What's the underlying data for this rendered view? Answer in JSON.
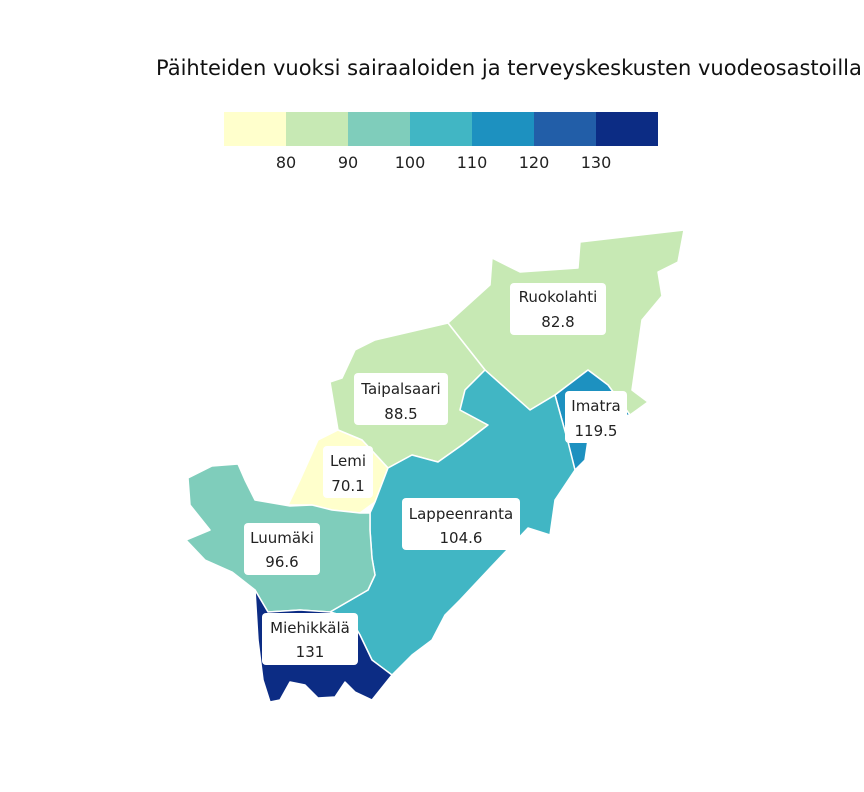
{
  "title": "Päihteiden vuoksi sairaaloiden ja terveyskeskusten vuodeosastoilla h",
  "legend": {
    "colors": [
      "#ffffcc",
      "#c7e9b4",
      "#7fcdbb",
      "#41b6c4",
      "#1d91c0",
      "#225ea8",
      "#0c2c84"
    ],
    "ticks": [
      "80",
      "90",
      "100",
      "110",
      "120",
      "130"
    ]
  },
  "regions": [
    {
      "name": "Ruokolahti",
      "value": "82.8",
      "color": "#c7e9b4"
    },
    {
      "name": "Taipalsaari",
      "value": "88.5",
      "color": "#c7e9b4"
    },
    {
      "name": "Imatra",
      "value": "119.5",
      "color": "#1d91c0"
    },
    {
      "name": "Lemi",
      "value": "70.1",
      "color": "#ffffcc"
    },
    {
      "name": "Lappeenranta",
      "value": "104.6",
      "color": "#41b6c4"
    },
    {
      "name": "Luumäki",
      "value": "96.6",
      "color": "#7fcdbb"
    },
    {
      "name": "Miehikkälä",
      "value": "131",
      "color": "#0c2c84"
    }
  ]
}
